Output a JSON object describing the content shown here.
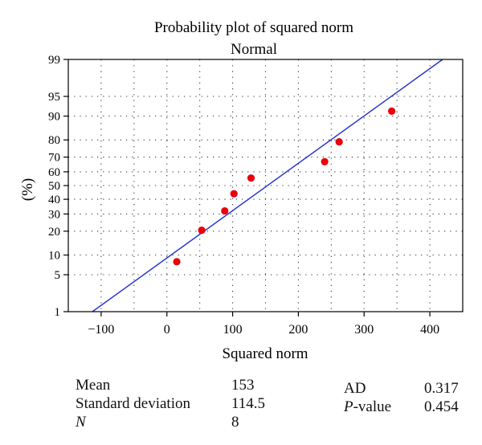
{
  "chart_data": {
    "type": "scatter",
    "title": "Probability plot of squared norm",
    "subtitle": "Normal",
    "xlabel": "Squared norm",
    "ylabel": "(%)",
    "xlim": [
      -150,
      450
    ],
    "ylim_percent": [
      1,
      99
    ],
    "y_scale": "normal-probability",
    "grid": "dotted",
    "x_ticks": [
      -100,
      0,
      100,
      200,
      300,
      400
    ],
    "x_tick_labels": [
      "−100",
      "0",
      "100",
      "200",
      "300",
      "400"
    ],
    "y_ticks": [
      1,
      5,
      10,
      20,
      30,
      40,
      50,
      60,
      70,
      80,
      90,
      95,
      99
    ],
    "points": [
      {
        "x": 15,
        "y": 8
      },
      {
        "x": 53,
        "y": 20.5
      },
      {
        "x": 88,
        "y": 32
      },
      {
        "x": 102,
        "y": 44
      },
      {
        "x": 128,
        "y": 55.5
      },
      {
        "x": 240,
        "y": 67
      },
      {
        "x": 262,
        "y": 79
      },
      {
        "x": 342,
        "y": 91.5
      }
    ],
    "fit_line": {
      "mean": 153,
      "sd": 114.5
    },
    "colors": {
      "points": "#e8000b",
      "line": "#1f2fd0",
      "axis": "#000000"
    }
  },
  "stats": {
    "mean_label": "Mean",
    "mean_value": "153",
    "sd_label": "Standard deviation",
    "sd_value": "114.5",
    "n_label": "N",
    "n_value": "8",
    "ad_label": "AD",
    "ad_value": "0.317",
    "p_label_italic": "P",
    "p_label_rest": "-value",
    "p_value": "0.454"
  }
}
